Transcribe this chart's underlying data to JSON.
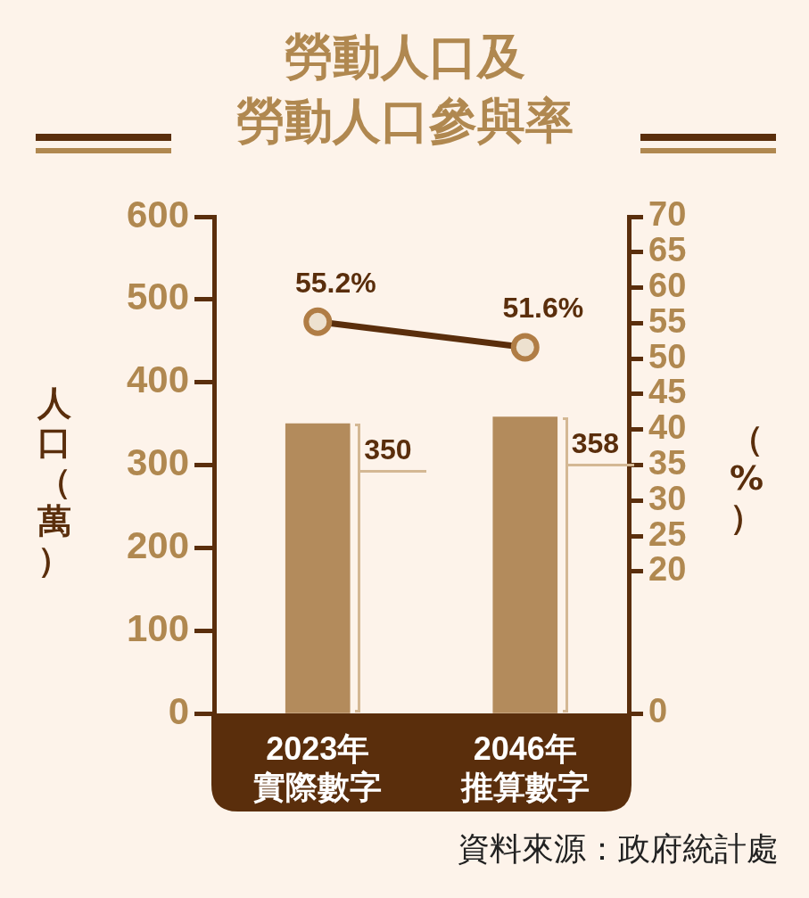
{
  "chart_data": {
    "type": "bar",
    "title": "勞動人口及",
    "subtitle": "勞動人口參與率",
    "ylabel": "人口（萬）",
    "y2label": "（%）",
    "categories": [
      "2023年實際數字",
      "2046年推算數字"
    ],
    "series": [
      {
        "color": "#b38b5c",
        "values": [
          350,
          358
        ],
        "value_labels": [
          "350",
          "358"
        ]
      },
      {
        "type": "line",
        "axis": "y2",
        "color": "#5a2e0c",
        "values": [
          55.2,
          51.6
        ],
        "value_labels": [
          "55.2%",
          "51.6%"
        ]
      }
    ],
    "ylim": [
      0,
      600
    ],
    "yticks": [
      0,
      100,
      200,
      300,
      400,
      500,
      600
    ],
    "y2lim": [
      0,
      70
    ],
    "y2ticks": [
      0,
      20,
      25,
      30,
      35,
      40,
      45,
      50,
      55,
      60,
      65,
      70
    ],
    "grid": false,
    "legend": false,
    "marker": "circle",
    "line_style": "solid",
    "annotations": [
      "資料來源：政府統計處"
    ]
  }
}
